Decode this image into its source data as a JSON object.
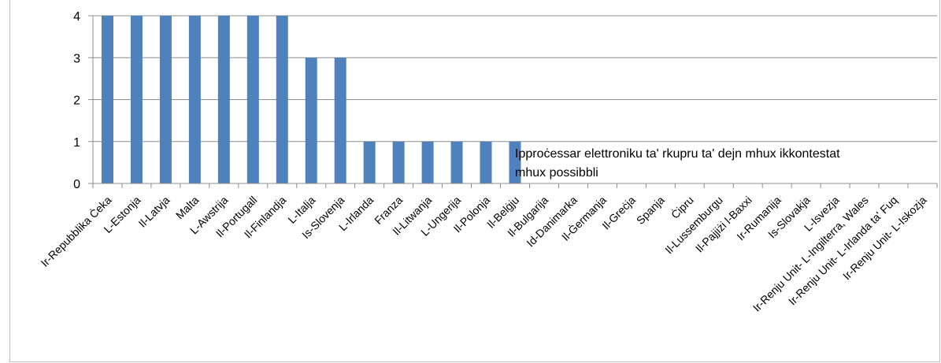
{
  "chart_data": {
    "type": "bar",
    "categories": [
      "Ir-Repubblika Ċeka",
      "L-Estonja",
      "Il-Latvja",
      "Malta",
      "L-Awstrija",
      "Il-Portugall",
      "Il-Finlandja",
      "L-Italja",
      "Is-Slovenja",
      "L-Irlanda",
      "Franza",
      "Il-Litwanja",
      "L-Ungerija",
      "Il-Polonja",
      "Il-Belġju",
      "Il-Bulgarija",
      "Id-Danimarka",
      "Il-Ġermanja",
      "Il-Greċja",
      "Spanja",
      "Ċipru",
      "Il-Lussemburgu",
      "Il-Pajjiżi l-Baxxi",
      "Ir-Rumanija",
      "Is-Slovakja",
      "L-Isvezja",
      "Ir-Renju Unit- L-Ingilterra, Wales",
      "Ir-Renju Unit- L-Irlanda ta' Fuq",
      "Ir-Renju Unit- L-Iskozja"
    ],
    "values": [
      4,
      4,
      4,
      4,
      4,
      4,
      4,
      3,
      3,
      1,
      1,
      1,
      1,
      1,
      1,
      0,
      0,
      0,
      0,
      0,
      0,
      0,
      0,
      0,
      0,
      0,
      0,
      0,
      0
    ],
    "ylim": [
      0,
      4
    ],
    "yticks": [
      "0",
      "1",
      "2",
      "3",
      "4"
    ],
    "grid": true,
    "bar_color": "#4f81bd",
    "annotation": "Ipproċessar elettroniku ta' rkupru ta' dejn mhux ikkontestat mhux possibbli",
    "annotation_lines": [
      "Ipproċessar elettroniku ta' rkupru ta' dejn mhux ikkontestat",
      "mhux possibbli"
    ]
  }
}
